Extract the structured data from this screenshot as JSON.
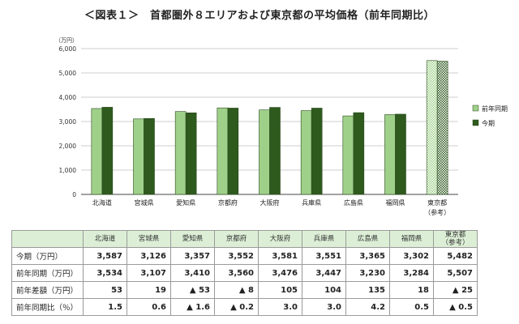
{
  "title": "＜図表１＞　首都圏外８エリアおよび東京都の平均価格（前年同期比）",
  "chart_data": {
    "type": "bar",
    "unit_label": "（万円）",
    "categories": [
      "北海道",
      "宮城県",
      "愛知県",
      "京都府",
      "大阪府",
      "兵庫県",
      "広島県",
      "福岡県",
      "東京都"
    ],
    "category_sublabels": [
      "",
      "",
      "",
      "",
      "",
      "",
      "",
      "",
      "（参考）"
    ],
    "series": [
      {
        "name": "前年同期",
        "color": "#9fd08a",
        "values": [
          3534,
          3107,
          3410,
          3560,
          3476,
          3447,
          3230,
          3284,
          5507
        ]
      },
      {
        "name": "今期",
        "color": "#2e5a1e",
        "values": [
          3587,
          3126,
          3357,
          3552,
          3581,
          3551,
          3365,
          3302,
          5482
        ]
      }
    ],
    "ylim": [
      0,
      6000
    ],
    "yticks": [
      "0",
      "1,000",
      "2,000",
      "3,000",
      "4,000",
      "5,000",
      "6,000"
    ],
    "ytick_values": [
      0,
      1000,
      2000,
      3000,
      4000,
      5000,
      6000
    ],
    "grid": true,
    "legend_position": "right",
    "hatched_last_category": true
  },
  "table": {
    "columns": [
      "北海道",
      "宮城県",
      "愛知県",
      "京都府",
      "大阪府",
      "兵庫県",
      "広島県",
      "福岡県",
      "東京都\n（参考）"
    ],
    "rows": [
      {
        "label": "今期（万円）",
        "cells": [
          "3,587",
          "3,126",
          "3,357",
          "3,552",
          "3,581",
          "3,551",
          "3,365",
          "3,302",
          "5,482"
        ]
      },
      {
        "label": "前年同期（万円）",
        "cells": [
          "3,534",
          "3,107",
          "3,410",
          "3,560",
          "3,476",
          "3,447",
          "3,230",
          "3,284",
          "5,507"
        ]
      },
      {
        "label": "前年差額（万円）",
        "cells": [
          "53",
          "19",
          "▲ 53",
          "▲ 8",
          "105",
          "104",
          "135",
          "18",
          "▲ 25"
        ]
      },
      {
        "label": "前年同期比（％）",
        "cells": [
          "1.5",
          "0.6",
          "▲ 1.6",
          "▲ 0.2",
          "3.0",
          "3.0",
          "4.2",
          "0.5",
          "▲ 0.5"
        ]
      }
    ]
  }
}
